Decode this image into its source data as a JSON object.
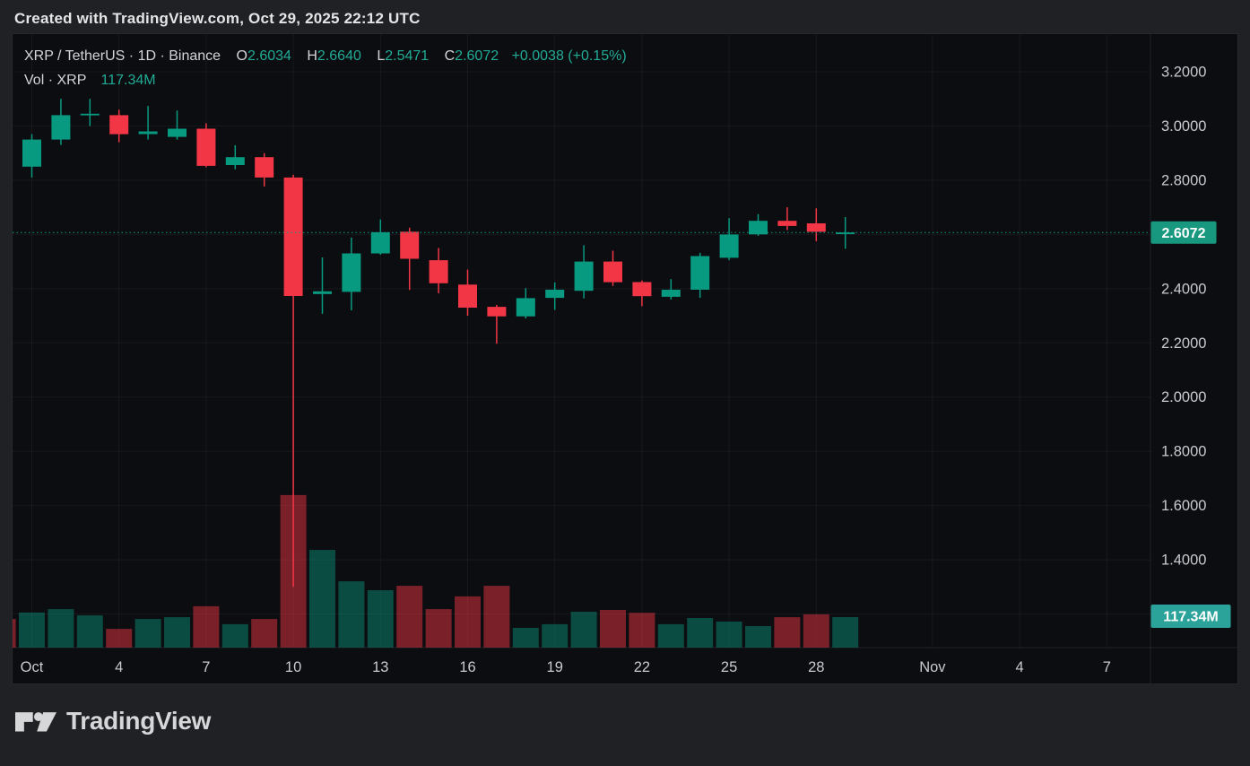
{
  "attribution": "Created with TradingView.com, Oct 29, 2025 22:12 UTC",
  "header": {
    "instrument": "XRP / TetherUS · 1D · Binance",
    "o_label": "O",
    "o_value": "2.6034",
    "h_label": "H",
    "h_value": "2.6640",
    "l_label": "L",
    "l_value": "2.5471",
    "c_label": "C",
    "c_value": "2.6072",
    "change": "+0.0038 (+0.15%)",
    "vol_label": "Vol · XRP",
    "vol_value": "117.34M"
  },
  "logo": {
    "text": "TradingView"
  },
  "colors": {
    "up": "#089981",
    "down": "#f23645",
    "volume_up": "rgba(8,153,129,0.45)",
    "volume_down": "rgba(242,54,69,0.48)",
    "grid": "rgba(240,244,252,0.05)",
    "axis_line": "rgba(240,244,252,0.09)",
    "axis_text": "#c7cbd1",
    "badge_price_bg": "#17987f",
    "badge_volume_bg": "#2ba39b",
    "badge_text": "#ffffff",
    "dotted_price_line": "#0b9d83"
  },
  "chart_data": {
    "type": "candlestick+volume",
    "symbol": "XRP / TetherUS",
    "interval": "1D",
    "exchange": "Binance",
    "last": {
      "open": 2.6034,
      "high": 2.664,
      "low": 2.5471,
      "close": 2.6072,
      "change": "+0.0038",
      "change_pct": "+0.15%",
      "volume_label": "117.34M"
    },
    "current_price": 2.6072,
    "current_price_label": "2.6072",
    "current_volume_label": "117.34M",
    "grid_levels": [
      3.2,
      3.0,
      2.8,
      2.6,
      2.4,
      2.2,
      2.0,
      1.8,
      1.6,
      1.4,
      1.2
    ],
    "price_axis_labels": [
      {
        "value": 3.2,
        "label": "3.2000"
      },
      {
        "value": 3.0,
        "label": "3.0000"
      },
      {
        "value": 2.8,
        "label": "2.8000"
      },
      {
        "value": 2.4,
        "label": "2.4000"
      },
      {
        "value": 2.2,
        "label": "2.2000"
      },
      {
        "value": 2.0,
        "label": "2.0000"
      },
      {
        "value": 1.8,
        "label": "1.8000"
      },
      {
        "value": 1.6,
        "label": "1.6000"
      },
      {
        "value": 1.4,
        "label": "1.4000"
      }
    ],
    "time_ticks": [
      {
        "label": "Oct",
        "day": 1
      },
      {
        "label": "4",
        "day": 4
      },
      {
        "label": "7",
        "day": 7
      },
      {
        "label": "10",
        "day": 10
      },
      {
        "label": "13",
        "day": 13
      },
      {
        "label": "16",
        "day": 16
      },
      {
        "label": "19",
        "day": 19
      },
      {
        "label": "22",
        "day": 22
      },
      {
        "label": "25",
        "day": 25
      },
      {
        "label": "28",
        "day": 28
      },
      {
        "label": "Nov",
        "day": 32
      },
      {
        "label": "4",
        "day": 35
      },
      {
        "label": "7",
        "day": 38
      }
    ],
    "partial_bar": {
      "date": "Sep 30",
      "day": 0,
      "direction": "down",
      "vol_m": 110
    },
    "candles": [
      {
        "date": "Oct 1",
        "day": 1,
        "o": 2.85,
        "h": 2.97,
        "l": 2.81,
        "c": 2.95,
        "vol_m": 135
      },
      {
        "date": "Oct 2",
        "day": 2,
        "o": 2.95,
        "h": 3.1,
        "l": 2.93,
        "c": 3.04,
        "vol_m": 148
      },
      {
        "date": "Oct 3",
        "day": 3,
        "o": 3.04,
        "h": 3.1,
        "l": 3.0,
        "c": 3.045,
        "vol_m": 124
      },
      {
        "date": "Oct 4",
        "day": 4,
        "o": 3.04,
        "h": 3.06,
        "l": 2.94,
        "c": 2.97,
        "vol_m": 72
      },
      {
        "date": "Oct 5",
        "day": 5,
        "o": 2.97,
        "h": 3.074,
        "l": 2.95,
        "c": 2.98,
        "vol_m": 110
      },
      {
        "date": "Oct 6",
        "day": 6,
        "o": 2.96,
        "h": 3.057,
        "l": 2.95,
        "c": 2.99,
        "vol_m": 117
      },
      {
        "date": "Oct 7",
        "day": 7,
        "o": 2.99,
        "h": 3.01,
        "l": 2.848,
        "c": 2.853,
        "vol_m": 159
      },
      {
        "date": "Oct 8",
        "day": 8,
        "o": 2.856,
        "h": 2.929,
        "l": 2.84,
        "c": 2.885,
        "vol_m": 90
      },
      {
        "date": "Oct 9",
        "day": 9,
        "o": 2.885,
        "h": 2.9,
        "l": 2.777,
        "c": 2.81,
        "vol_m": 110
      },
      {
        "date": "Oct 10",
        "day": 10,
        "o": 2.81,
        "h": 2.82,
        "l": 1.3,
        "c": 2.373,
        "vol_m": 587
      },
      {
        "date": "Oct 11",
        "day": 11,
        "o": 2.38,
        "h": 2.515,
        "l": 2.307,
        "c": 2.39,
        "vol_m": 376
      },
      {
        "date": "Oct 12",
        "day": 12,
        "o": 2.388,
        "h": 2.588,
        "l": 2.32,
        "c": 2.53,
        "vol_m": 255
      },
      {
        "date": "Oct 13",
        "day": 13,
        "o": 2.53,
        "h": 2.655,
        "l": 2.525,
        "c": 2.608,
        "vol_m": 221
      },
      {
        "date": "Oct 14",
        "day": 14,
        "o": 2.61,
        "h": 2.625,
        "l": 2.395,
        "c": 2.51,
        "vol_m": 238
      },
      {
        "date": "Oct 15",
        "day": 15,
        "o": 2.505,
        "h": 2.55,
        "l": 2.383,
        "c": 2.42,
        "vol_m": 148
      },
      {
        "date": "Oct 16",
        "day": 16,
        "o": 2.415,
        "h": 2.47,
        "l": 2.3,
        "c": 2.33,
        "vol_m": 197
      },
      {
        "date": "Oct 17",
        "day": 17,
        "o": 2.333,
        "h": 2.34,
        "l": 2.197,
        "c": 2.298,
        "vol_m": 238
      },
      {
        "date": "Oct 18",
        "day": 18,
        "o": 2.298,
        "h": 2.402,
        "l": 2.29,
        "c": 2.365,
        "vol_m": 76
      },
      {
        "date": "Oct 19",
        "day": 19,
        "o": 2.366,
        "h": 2.423,
        "l": 2.322,
        "c": 2.396,
        "vol_m": 90
      },
      {
        "date": "Oct 20",
        "day": 20,
        "o": 2.392,
        "h": 2.56,
        "l": 2.364,
        "c": 2.5,
        "vol_m": 138
      },
      {
        "date": "Oct 21",
        "day": 21,
        "o": 2.5,
        "h": 2.54,
        "l": 2.41,
        "c": 2.424,
        "vol_m": 145
      },
      {
        "date": "Oct 22",
        "day": 22,
        "o": 2.424,
        "h": 2.43,
        "l": 2.335,
        "c": 2.372,
        "vol_m": 134
      },
      {
        "date": "Oct 23",
        "day": 23,
        "o": 2.37,
        "h": 2.435,
        "l": 2.36,
        "c": 2.396,
        "vol_m": 90
      },
      {
        "date": "Oct 24",
        "day": 24,
        "o": 2.396,
        "h": 2.532,
        "l": 2.366,
        "c": 2.52,
        "vol_m": 114
      },
      {
        "date": "Oct 25",
        "day": 25,
        "o": 2.514,
        "h": 2.66,
        "l": 2.505,
        "c": 2.6,
        "vol_m": 100
      },
      {
        "date": "Oct 26",
        "day": 26,
        "o": 2.6,
        "h": 2.675,
        "l": 2.595,
        "c": 2.65,
        "vol_m": 83
      },
      {
        "date": "Oct 27",
        "day": 27,
        "o": 2.65,
        "h": 2.7,
        "l": 2.616,
        "c": 2.631,
        "vol_m": 117
      },
      {
        "date": "Oct 28",
        "day": 28,
        "o": 2.641,
        "h": 2.696,
        "l": 2.575,
        "c": 2.61,
        "vol_m": 128
      },
      {
        "date": "Oct 29",
        "day": 29,
        "o": 2.6034,
        "h": 2.664,
        "l": 2.5471,
        "c": 2.6072,
        "vol_m": 117.34
      }
    ]
  }
}
